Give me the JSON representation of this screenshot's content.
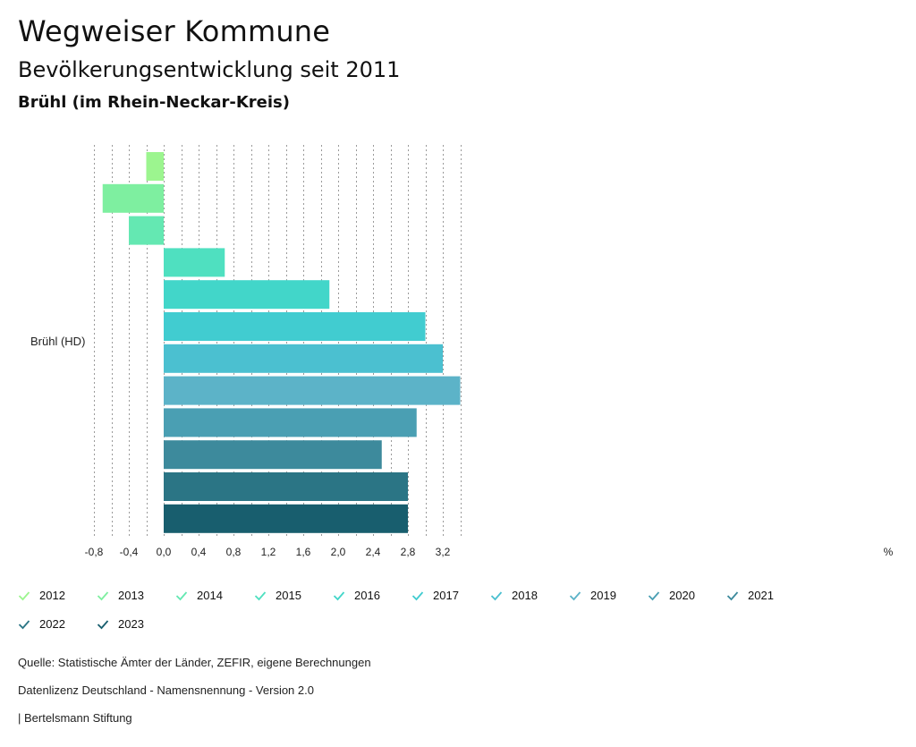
{
  "header": {
    "title": "Wegweiser Kommune",
    "subtitle": "Bevölkerungsentwicklung seit 2011",
    "place": "Brühl (im Rhein-Neckar-Kreis)"
  },
  "chart_data": {
    "type": "bar",
    "orientation": "horizontal",
    "category": "Brühl (HD)",
    "unit": "%",
    "xlim": [
      -0.8,
      3.4
    ],
    "xticks": [
      -0.8,
      -0.4,
      0.0,
      0.4,
      0.8,
      1.2,
      1.6,
      2.0,
      2.4,
      2.8,
      3.2
    ],
    "xtick_labels": [
      "-0,8",
      "-0,4",
      "0,0",
      "0,4",
      "0,8",
      "1,2",
      "1,6",
      "2,0",
      "2,4",
      "2,8",
      "3,2"
    ],
    "grid": true,
    "series": [
      {
        "name": "2012",
        "value": -0.2,
        "color": "#9cf58f"
      },
      {
        "name": "2013",
        "value": -0.7,
        "color": "#7eefa0"
      },
      {
        "name": "2014",
        "value": -0.4,
        "color": "#64e8b2"
      },
      {
        "name": "2015",
        "value": 0.7,
        "color": "#4fe0c0"
      },
      {
        "name": "2016",
        "value": 1.9,
        "color": "#42d6c9"
      },
      {
        "name": "2017",
        "value": 3.0,
        "color": "#41ccd0"
      },
      {
        "name": "2018",
        "value": 3.2,
        "color": "#4bc0d0"
      },
      {
        "name": "2019",
        "value": 3.4,
        "color": "#5cb3c8"
      },
      {
        "name": "2020",
        "value": 2.9,
        "color": "#4a9fb3"
      },
      {
        "name": "2021",
        "value": 2.5,
        "color": "#3d8a9c"
      },
      {
        "name": "2022",
        "value": 2.8,
        "color": "#2b7585"
      },
      {
        "name": "2023",
        "value": 2.8,
        "color": "#185e6e"
      }
    ]
  },
  "footer": {
    "source": "Quelle: Statistische Ämter der Länder, ZEFIR, eigene Berechnungen",
    "license": "Datenlizenz Deutschland - Namensnennung - Version 2.0",
    "publisher": "| Bertelsmann Stiftung"
  }
}
